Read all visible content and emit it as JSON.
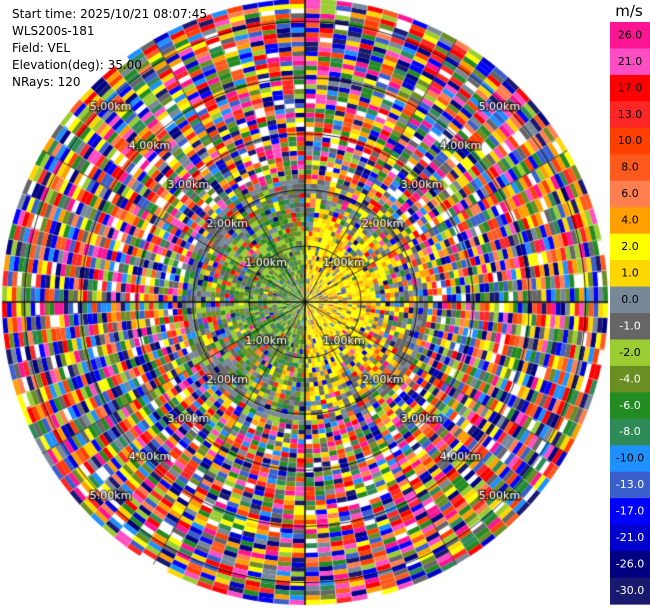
{
  "info": {
    "start_time": "Start time: 2025/10/21 08:07:45",
    "instrument": "WLS200s-181",
    "field": "Field: VEL",
    "elevation": "Elevation(deg): 35.00",
    "nrays": "NRays: 120"
  },
  "chart_data": {
    "type": "heatmap",
    "projection": "polar-ppi",
    "field": "VEL",
    "units": "m/s",
    "elevation_deg": 35.0,
    "n_rays": 120,
    "range_rings_km": [
      1,
      2,
      3,
      4,
      5
    ],
    "range_ring_labels": [
      "1.00km",
      "2.00km",
      "3.00km",
      "4.00km",
      "5.00km"
    ],
    "max_range_km": 5.4,
    "grid": true,
    "colorbar": {
      "label": "m/s",
      "ticks": [
        "26.0",
        "21.0",
        "17.0",
        "13.0",
        "10.0",
        "8.0",
        "6.0",
        "4.0",
        "2.0",
        "1.0",
        "0.0",
        "-1.0",
        "-2.0",
        "-4.0",
        "-6.0",
        "-8.0",
        "-10.0",
        "-13.0",
        "-17.0",
        "-21.0",
        "-26.0",
        "-30.0"
      ],
      "colors": [
        "#ff1493",
        "#ff4dc4",
        "#ff0000",
        "#ff2626",
        "#ff4000",
        "#ff5a1e",
        "#ff7f50",
        "#ffa000",
        "#ffff00",
        "#ffd700",
        "#778899",
        "#666666",
        "#9acd32",
        "#6b8e23",
        "#228b22",
        "#2e8b57",
        "#1e90ff",
        "#3a5fcd",
        "#0000ff",
        "#0000cd",
        "#000080",
        "#191970"
      ]
    },
    "near_range_pattern": {
      "east_half": "positive (yellow, 1-4 m/s)",
      "west_half": "negative (green/olive, -1 to -8 m/s)",
      "valid_range_km": 2.2
    }
  }
}
